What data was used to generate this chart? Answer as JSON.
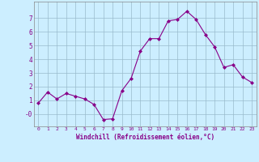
{
  "x": [
    0,
    1,
    2,
    3,
    4,
    5,
    6,
    7,
    8,
    9,
    10,
    11,
    12,
    13,
    14,
    15,
    16,
    17,
    18,
    19,
    20,
    21,
    22,
    23
  ],
  "y": [
    0.8,
    1.6,
    1.1,
    1.5,
    1.3,
    1.1,
    0.7,
    -0.4,
    -0.35,
    1.7,
    2.6,
    4.6,
    5.5,
    5.5,
    6.8,
    6.9,
    7.5,
    6.9,
    5.8,
    4.9,
    3.4,
    3.6,
    2.7,
    2.3
  ],
  "bg_color": "#cceeff",
  "line_color": "#880088",
  "marker_color": "#880088",
  "grid_color": "#99bbcc",
  "text_color": "#880088",
  "xlabel": "Windchill (Refroidissement éolien,°C)",
  "ylim": [
    -0.9,
    8.2
  ],
  "xlim": [
    -0.5,
    23.5
  ],
  "yticks": [
    0,
    1,
    2,
    3,
    4,
    5,
    6,
    7
  ],
  "ytick_labels": [
    "-0",
    "1",
    "2",
    "3",
    "4",
    "5",
    "6",
    "7"
  ],
  "xticks": [
    0,
    1,
    2,
    3,
    4,
    5,
    6,
    7,
    8,
    9,
    10,
    11,
    12,
    13,
    14,
    15,
    16,
    17,
    18,
    19,
    20,
    21,
    22,
    23
  ],
  "figsize": [
    3.2,
    2.0
  ],
  "dpi": 100
}
